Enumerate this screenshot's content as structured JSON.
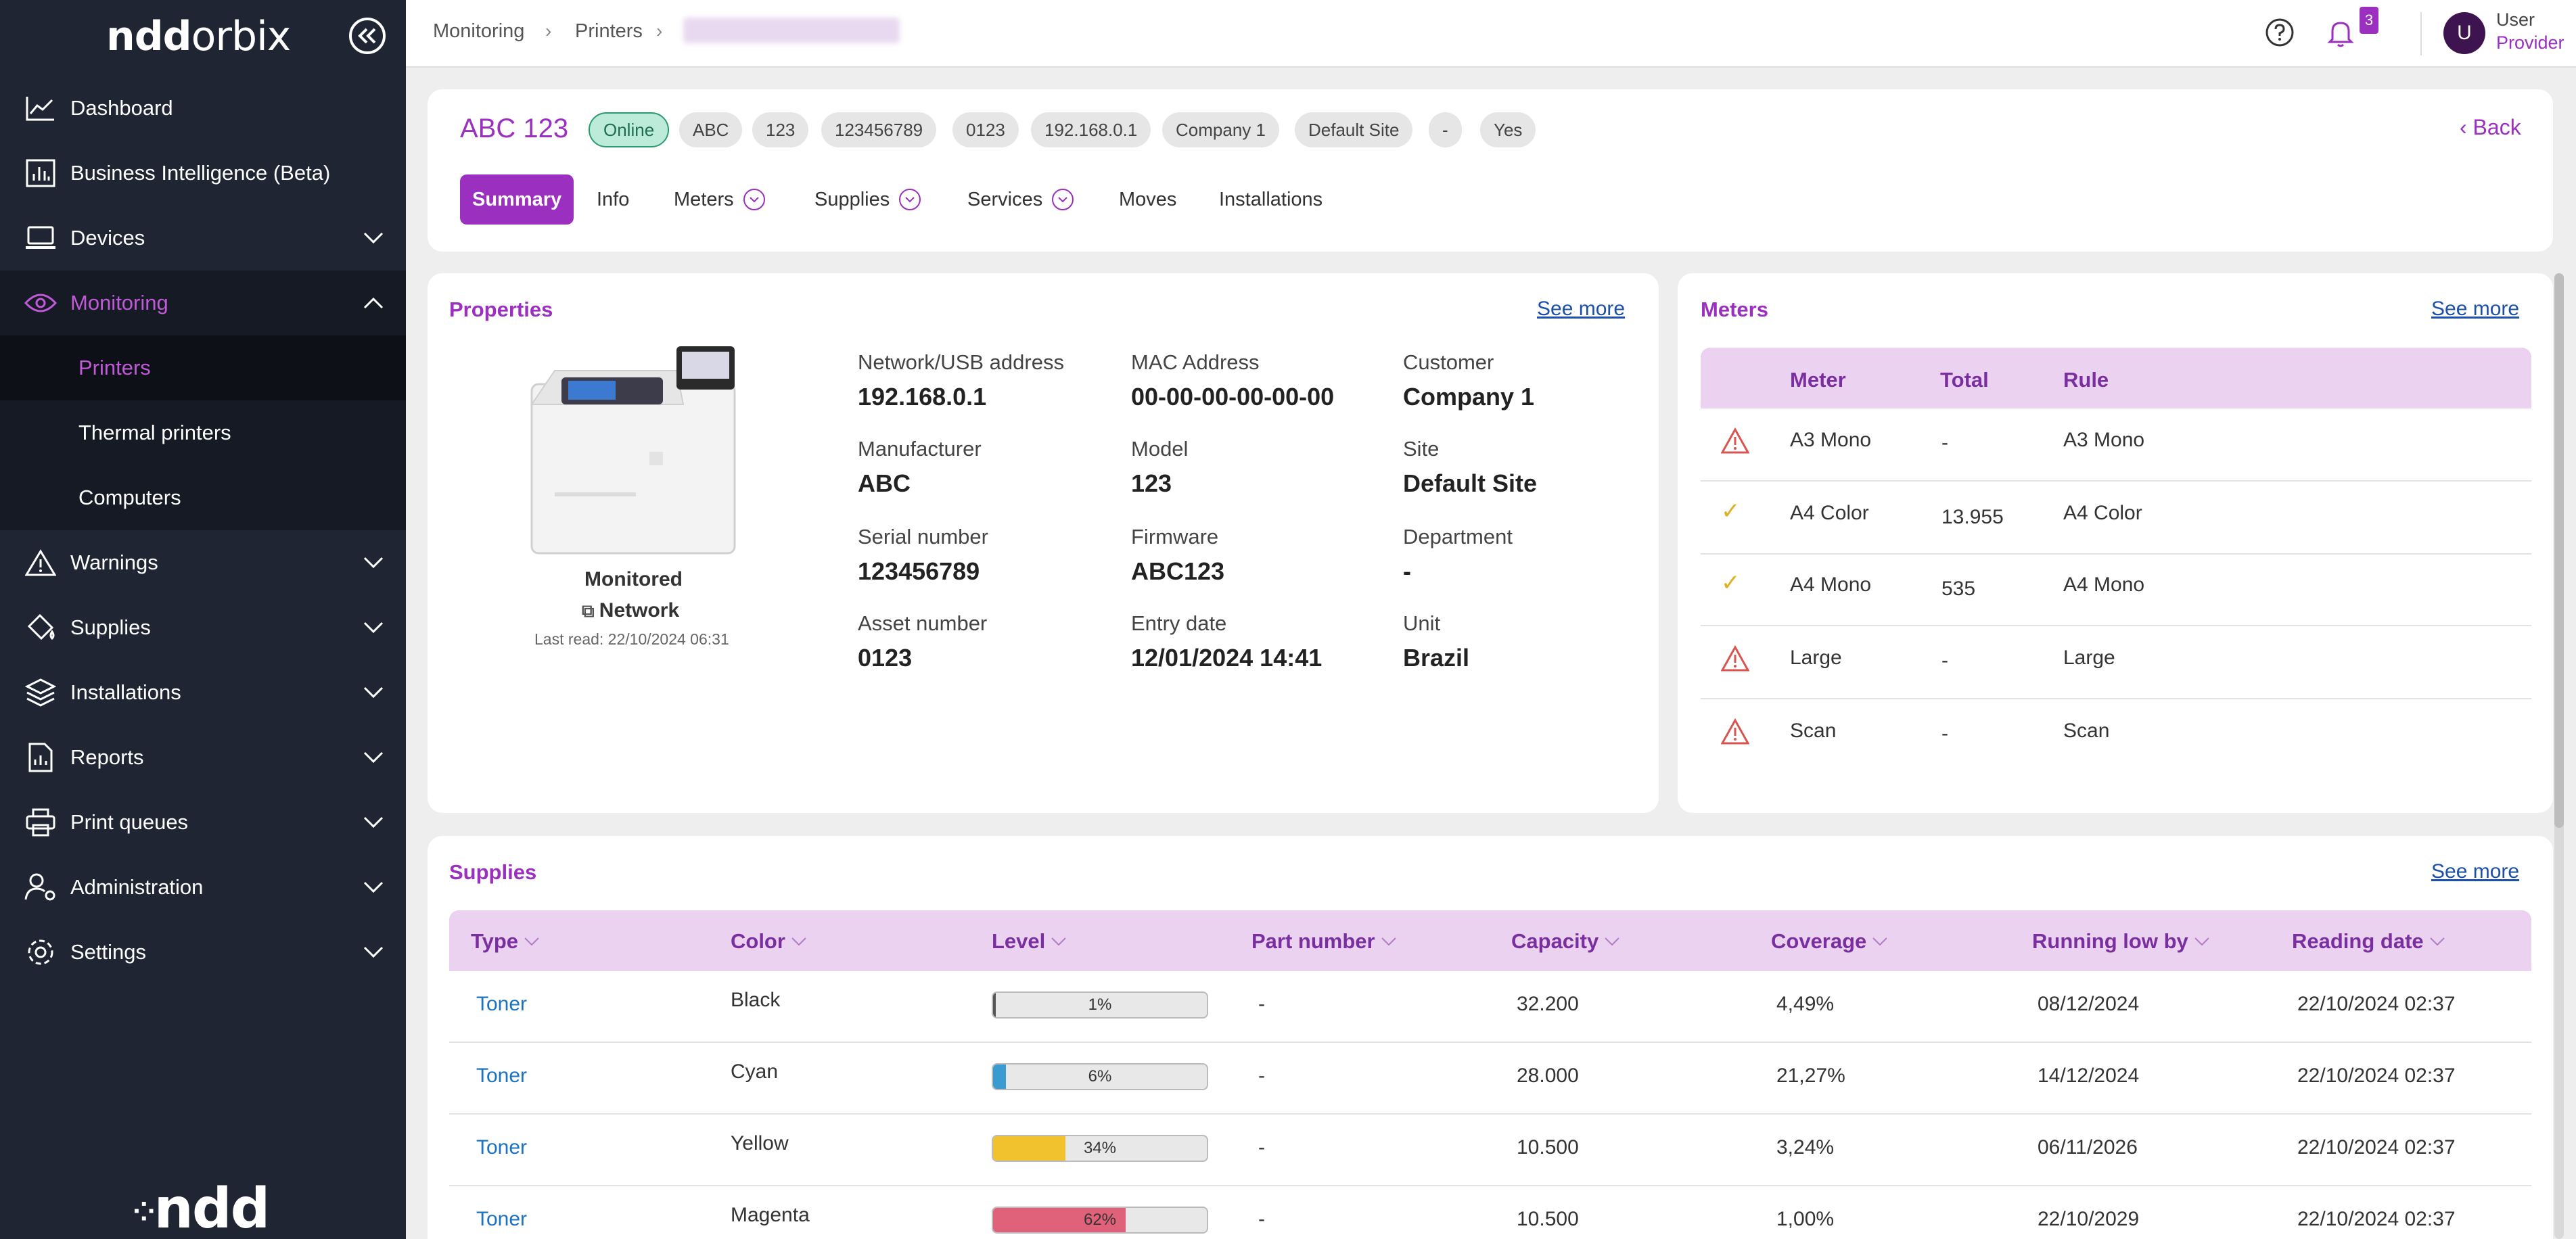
{
  "app": {
    "logo_bold": "ndd",
    "logo_regular": "orbix",
    "bottom_logo": "ndd"
  },
  "sidebar": {
    "items": [
      {
        "label": "Dashboard"
      },
      {
        "label": "Business Intelligence (Beta)"
      },
      {
        "label": "Devices"
      },
      {
        "label": "Monitoring"
      },
      {
        "label": "Warnings"
      },
      {
        "label": "Supplies"
      },
      {
        "label": "Installations"
      },
      {
        "label": "Reports"
      },
      {
        "label": "Print queues"
      },
      {
        "label": "Administration"
      },
      {
        "label": "Settings"
      }
    ],
    "monitoring_sub": [
      {
        "label": "Printers"
      },
      {
        "label": "Thermal printers"
      },
      {
        "label": "Computers"
      }
    ]
  },
  "topbar": {
    "breadcrumb": [
      "Monitoring",
      "Printers"
    ],
    "notifications_count": "3",
    "user_name": "User",
    "user_role": "Provider",
    "avatar_initial": "U"
  },
  "device": {
    "title": "ABC 123",
    "chips": [
      "Online",
      "ABC",
      "123",
      "123456789",
      "0123",
      "192.168.0.1",
      "Company 1",
      "Default Site",
      "-",
      "Yes"
    ],
    "back_label": "Back",
    "tabs": [
      "Summary",
      "Info",
      "Meters",
      "Supplies",
      "Services",
      "Moves",
      "Installations"
    ]
  },
  "properties": {
    "title": "Properties",
    "see_more": "See more",
    "monitored_label": "Monitored",
    "connection_label": "Network",
    "last_read": "Last read: 22/10/2024 06:31",
    "fields": [
      {
        "label": "Network/USB address",
        "value": "192.168.0.1"
      },
      {
        "label": "MAC Address",
        "value": "00-00-00-00-00-00"
      },
      {
        "label": "Customer",
        "value": "Company 1"
      },
      {
        "label": "Manufacturer",
        "value": "ABC"
      },
      {
        "label": "Model",
        "value": "123"
      },
      {
        "label": "Site",
        "value": "Default Site"
      },
      {
        "label": "Serial number",
        "value": "123456789"
      },
      {
        "label": "Firmware",
        "value": "ABC123"
      },
      {
        "label": "Department",
        "value": "-"
      },
      {
        "label": "Asset number",
        "value": "0123"
      },
      {
        "label": "Entry date",
        "value": "12/01/2024 14:41"
      },
      {
        "label": "Unit",
        "value": "Brazil"
      }
    ]
  },
  "meters": {
    "title": "Meters",
    "see_more": "See more",
    "headers": [
      "Meter",
      "Total",
      "Rule"
    ],
    "rows": [
      {
        "status": "warning",
        "meter": "A3 Mono",
        "total": "-",
        "rule": "A3 Mono"
      },
      {
        "status": "ok",
        "meter": "A4 Color",
        "total": "13.955",
        "rule": "A4 Color"
      },
      {
        "status": "ok",
        "meter": "A4 Mono",
        "total": "535",
        "rule": "A4 Mono"
      },
      {
        "status": "warning",
        "meter": "Large",
        "total": "-",
        "rule": "Large"
      },
      {
        "status": "warning",
        "meter": "Scan",
        "total": "-",
        "rule": "Scan"
      }
    ]
  },
  "supplies": {
    "title": "Supplies",
    "see_more": "See more",
    "headers": [
      "Type",
      "Color",
      "Level",
      "Part number",
      "Capacity",
      "Coverage",
      "Running low by",
      "Reading date"
    ],
    "rows": [
      {
        "type": "Toner",
        "color": "Black",
        "level": 1,
        "level_label": "1%",
        "fill_color": "#555555",
        "part": "-",
        "capacity": "32.200",
        "coverage": "4,49%",
        "low_by": "08/12/2024",
        "reading": "22/10/2024 02:37"
      },
      {
        "type": "Toner",
        "color": "Cyan",
        "level": 6,
        "level_label": "6%",
        "fill_color": "#3a9bd0",
        "part": "-",
        "capacity": "28.000",
        "coverage": "21,27%",
        "low_by": "14/12/2024",
        "reading": "22/10/2024 02:37"
      },
      {
        "type": "Toner",
        "color": "Yellow",
        "level": 34,
        "level_label": "34%",
        "fill_color": "#f2c12e",
        "part": "-",
        "capacity": "10.500",
        "coverage": "3,24%",
        "low_by": "06/11/2026",
        "reading": "22/10/2024 02:37"
      },
      {
        "type": "Toner",
        "color": "Magenta",
        "level": 62,
        "level_label": "62%",
        "fill_color": "#e0627a",
        "part": "-",
        "capacity": "10.500",
        "coverage": "1,00%",
        "low_by": "22/10/2029",
        "reading": "22/10/2024 02:37"
      }
    ]
  },
  "colors": {
    "accent": "#9b2fbf",
    "sidebar_bg": "#1f2533",
    "header_row": "#ecd2f1"
  }
}
